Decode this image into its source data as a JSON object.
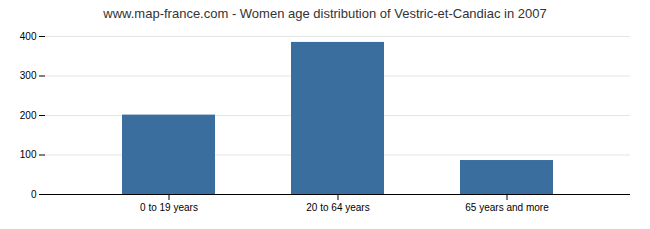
{
  "chart_data": {
    "type": "bar",
    "title": "www.map-france.com - Women age distribution of Vestric-et-Candiac in 2007",
    "categories": [
      "0 to 19 years",
      "20 to 64 years",
      "65 years and more"
    ],
    "values": [
      201,
      385,
      86
    ],
    "color": "#3a6e9e",
    "ylim": [
      0,
      400
    ],
    "yticks": [
      0,
      100,
      200,
      300,
      400
    ],
    "grid": true
  }
}
